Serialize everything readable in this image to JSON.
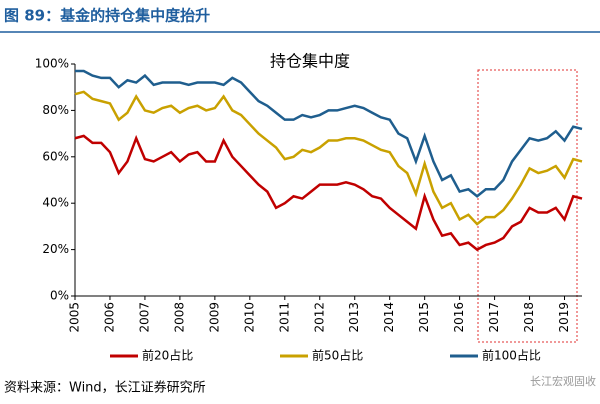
{
  "chart_data": {
    "type": "line",
    "title": "图 89：基金的持仓集中度抬升",
    "subtitle": "持仓集中度",
    "source": "资料来源：Wind，长江证券研究所",
    "watermark": "长江宏观固收",
    "x": [
      2005,
      2005.25,
      2005.5,
      2005.75,
      2006,
      2006.25,
      2006.5,
      2006.75,
      2007,
      2007.25,
      2007.5,
      2007.75,
      2008,
      2008.25,
      2008.5,
      2008.75,
      2009,
      2009.25,
      2009.5,
      2009.75,
      2010,
      2010.25,
      2010.5,
      2010.75,
      2011,
      2011.25,
      2011.5,
      2011.75,
      2012,
      2012.25,
      2012.5,
      2012.75,
      2013,
      2013.25,
      2013.5,
      2013.75,
      2014,
      2014.25,
      2014.5,
      2014.75,
      2015,
      2015.25,
      2015.5,
      2015.75,
      2016,
      2016.25,
      2016.5,
      2016.75,
      2017,
      2017.25,
      2017.5,
      2017.75,
      2018,
      2018.25,
      2018.5,
      2018.75,
      2019,
      2019.25,
      2019.5
    ],
    "series": [
      {
        "name": "前20占比",
        "color": "#c00000",
        "values": [
          68,
          69,
          66,
          66,
          62,
          53,
          58,
          68,
          59,
          58,
          60,
          62,
          58,
          61,
          62,
          58,
          58,
          67,
          60,
          56,
          52,
          48,
          45,
          38,
          40,
          43,
          42,
          45,
          48,
          48,
          48,
          49,
          48,
          46,
          43,
          42,
          38,
          35,
          32,
          29,
          43,
          33,
          26,
          27,
          22,
          23,
          20,
          22,
          23,
          25,
          30,
          32,
          38,
          36,
          36,
          38,
          33,
          43,
          42
        ]
      },
      {
        "name": "前50占比",
        "color": "#c9a100",
        "values": [
          87,
          88,
          85,
          84,
          83,
          76,
          79,
          86,
          80,
          79,
          81,
          82,
          79,
          81,
          82,
          80,
          81,
          86,
          80,
          78,
          74,
          70,
          67,
          64,
          59,
          60,
          63,
          62,
          64,
          67,
          67,
          68,
          68,
          67,
          65,
          63,
          62,
          56,
          53,
          44,
          57,
          45,
          38,
          40,
          33,
          35,
          31,
          34,
          34,
          37,
          42,
          48,
          55,
          53,
          54,
          56,
          51,
          59,
          58
        ]
      },
      {
        "name": "前100占比",
        "color": "#1f5e8e",
        "values": [
          97,
          97,
          95,
          94,
          94,
          90,
          93,
          92,
          95,
          91,
          92,
          92,
          92,
          91,
          92,
          92,
          92,
          91,
          94,
          92,
          88,
          84,
          82,
          79,
          76,
          76,
          78,
          77,
          78,
          80,
          80,
          81,
          82,
          81,
          79,
          77,
          76,
          70,
          68,
          58,
          69,
          58,
          50,
          52,
          45,
          46,
          43,
          46,
          46,
          50,
          58,
          63,
          68,
          67,
          68,
          71,
          67,
          73,
          72
        ]
      }
    ],
    "xlim": [
      2005,
      2019.5
    ],
    "xticks": [
      2005,
      2006,
      2007,
      2008,
      2009,
      2010,
      2011,
      2012,
      2013,
      2014,
      2015,
      2016,
      2017,
      2018,
      2019
    ],
    "ylim": [
      0,
      100
    ],
    "yticks": [
      {
        "value": 0,
        "label": "0%"
      },
      {
        "value": 20,
        "label": "20%"
      },
      {
        "value": 40,
        "label": "40%"
      },
      {
        "value": 60,
        "label": "60%"
      },
      {
        "value": 80,
        "label": "80%"
      },
      {
        "value": 100,
        "label": "100%"
      }
    ]
  }
}
